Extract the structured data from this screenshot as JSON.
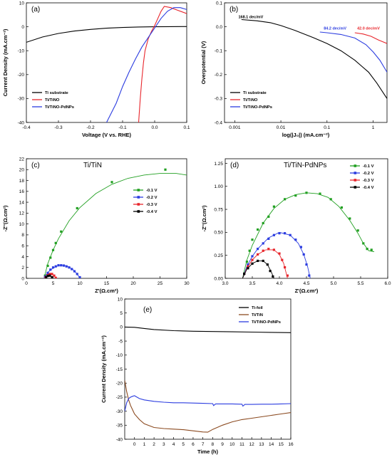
{
  "chart_data": [
    {
      "id": "a",
      "type": "line",
      "panel_label": "(a)",
      "xlabel": "Voltage (V vs. RHE)",
      "ylabel": "Current Density (mA.cm⁻²)",
      "xlim": [
        -0.4,
        0.1
      ],
      "ylim": [
        -40,
        10
      ],
      "xticks": [
        -0.4,
        -0.3,
        -0.2,
        -0.1,
        0.0,
        0.1
      ],
      "xtick_labels": [
        "-0.4",
        "-0.3",
        "-0.2",
        "-0.1",
        "0.0",
        "0.1"
      ],
      "yticks": [
        -40,
        -30,
        -20,
        -10,
        0,
        10
      ],
      "ytick_labels": [
        "-40",
        "-30",
        "-20",
        "-10",
        "0",
        "10"
      ],
      "legend_position": "bottom-left",
      "series": [
        {
          "name": "Ti substrate",
          "color": "#000000",
          "style": "line",
          "x": [
            -0.4,
            -0.35,
            -0.3,
            -0.25,
            -0.2,
            -0.15,
            -0.1,
            -0.05,
            0.0,
            0.05,
            0.1
          ],
          "y": [
            -6.5,
            -4.3,
            -2.8,
            -1.8,
            -1.1,
            -0.6,
            -0.3,
            -0.1,
            0.0,
            0.05,
            0.1
          ]
        },
        {
          "name": "Ti/TiNO",
          "color": "#e8262c",
          "style": "line",
          "x": [
            -0.05,
            -0.045,
            -0.04,
            -0.035,
            -0.03,
            -0.02,
            -0.01,
            0.0,
            0.01,
            0.02,
            0.03,
            0.05,
            0.07,
            0.1
          ],
          "y": [
            -40,
            -30,
            -22,
            -15,
            -10,
            -5,
            -2,
            0.5,
            3.5,
            6.5,
            8.5,
            8.0,
            7.0,
            5.5
          ]
        },
        {
          "name": "Ti/TiNO-PdNPs",
          "color": "#2c3de0",
          "style": "line",
          "x": [
            -0.15,
            -0.12,
            -0.1,
            -0.08,
            -0.06,
            -0.04,
            -0.02,
            0.0,
            0.02,
            0.04,
            0.06,
            0.08,
            0.1
          ],
          "y": [
            -40,
            -32,
            -25,
            -19,
            -13.5,
            -8.5,
            -4.5,
            -0.5,
            3.5,
            6.5,
            8.0,
            8.0,
            7.2
          ]
        }
      ]
    },
    {
      "id": "b",
      "type": "line",
      "panel_label": "(b)",
      "xlabel": "log(|J₀|) (mA.cm⁻²)",
      "ylabel": "Overpotential (V)",
      "xscale": "log",
      "xlim": [
        0.0006,
        2
      ],
      "ylim": [
        -0.4,
        0.1
      ],
      "xticks": [
        0.001,
        0.01,
        0.1,
        1
      ],
      "xtick_labels": [
        "0.001",
        "0.01",
        "0.1",
        "1"
      ],
      "yticks": [
        -0.4,
        -0.3,
        -0.2,
        -0.1,
        0.0,
        0.1
      ],
      "ytick_labels": [
        "-0.4",
        "-0.3",
        "-0.2",
        "-0.1",
        "0.0",
        "0.1"
      ],
      "legend_position": "bottom-left",
      "annotations": [
        {
          "text": "168.1 dec/mV",
          "color": "#000000",
          "x": 0.0012,
          "y": 0.036
        },
        {
          "text": "84.2 dec/mV",
          "color": "#2c3de0",
          "x": 0.085,
          "y": -0.012
        },
        {
          "text": "42.0 dec/mV",
          "color": "#e8262c",
          "x": 0.45,
          "y": -0.012
        }
      ],
      "series": [
        {
          "name": "Ti substrate",
          "color": "#000000",
          "style": "line",
          "x": [
            0.0014,
            0.003,
            0.006,
            0.01,
            0.02,
            0.05,
            0.1,
            0.2,
            0.4,
            0.8,
            1.2,
            2.0
          ],
          "y": [
            0.03,
            0.025,
            0.017,
            0.005,
            -0.015,
            -0.045,
            -0.07,
            -0.1,
            -0.14,
            -0.19,
            -0.235,
            -0.3
          ]
        },
        {
          "name": "Ti/TiNO",
          "color": "#e8262c",
          "style": "line",
          "x": [
            0.4,
            0.6,
            0.9,
            1.3,
            2.0
          ],
          "y": [
            -0.025,
            -0.03,
            -0.04,
            -0.055,
            -0.07
          ]
        },
        {
          "name": "Ti/TiNO-PdNPs",
          "color": "#2c3de0",
          "style": "line",
          "x": [
            0.07,
            0.1,
            0.2,
            0.4,
            0.7,
            1.0,
            1.4,
            2.0
          ],
          "y": [
            -0.022,
            -0.025,
            -0.032,
            -0.047,
            -0.075,
            -0.105,
            -0.14,
            -0.19
          ]
        }
      ]
    },
    {
      "id": "c",
      "type": "scatter",
      "panel_label": "(c)",
      "title": "Ti/TiN",
      "xlabel": "Z'(Ω.cm²)",
      "ylabel": "-Z''(Ω.cm²)",
      "xlim": [
        0,
        30
      ],
      "ylim": [
        0,
        22
      ],
      "xticks": [
        0,
        5,
        10,
        15,
        20,
        25,
        30
      ],
      "xtick_labels": [
        "0",
        "5",
        "10",
        "15",
        "20",
        "25",
        "30"
      ],
      "yticks": [
        0,
        2,
        4,
        6,
        8,
        10,
        12,
        14,
        16,
        18,
        20,
        22
      ],
      "ytick_labels": [
        "0",
        "2",
        "4",
        "6",
        "8",
        "10",
        "12",
        "14",
        "16",
        "18",
        "20",
        "22"
      ],
      "legend_position": "right",
      "series": [
        {
          "name": "-0.1 V",
          "color": "#22a022",
          "x": [
            3.5,
            4.0,
            4.5,
            5.0,
            5.5,
            6.5,
            9.5,
            16.0,
            26.0
          ],
          "y": [
            0.5,
            2.3,
            3.8,
            5.2,
            6.5,
            8.6,
            12.9,
            17.7,
            20.0
          ],
          "fit_x": [
            3.3,
            4,
            5,
            6,
            8,
            10,
            13,
            16,
            19,
            22,
            25,
            28,
            30
          ],
          "fit_y": [
            0,
            2.7,
            5.2,
            7.3,
            10.6,
            13.0,
            15.6,
            17.3,
            18.4,
            19.0,
            19.3,
            19.3,
            19.0
          ]
        },
        {
          "name": "-0.2 V",
          "color": "#2c3de0",
          "x": [
            3.5,
            4.0,
            4.5,
            5.0,
            5.5,
            6.0,
            6.5,
            7.0,
            7.5,
            8.0,
            8.5,
            9.0,
            9.5,
            10.0
          ],
          "y": [
            0.3,
            1.0,
            1.6,
            2.0,
            2.2,
            2.4,
            2.4,
            2.35,
            2.2,
            2.0,
            1.7,
            1.3,
            0.8,
            0.2
          ],
          "fit_x": [
            3.3,
            4,
            5,
            6,
            7,
            8,
            9,
            10
          ],
          "fit_y": [
            0,
            1.1,
            1.9,
            2.35,
            2.4,
            2.1,
            1.4,
            0.1
          ]
        },
        {
          "name": "-0.3 V",
          "color": "#e8262c",
          "x": [
            3.6,
            4.0,
            4.4,
            4.8,
            5.2,
            5.5
          ],
          "y": [
            0.2,
            0.6,
            0.8,
            0.8,
            0.5,
            0.1
          ],
          "fit_x": [
            3.5,
            4,
            4.5,
            5,
            5.5
          ],
          "fit_y": [
            0,
            0.65,
            0.85,
            0.7,
            0.1
          ]
        },
        {
          "name": "-0.4 V",
          "color": "#000000",
          "x": [
            3.7,
            4.0,
            4.4,
            4.8
          ],
          "y": [
            0.2,
            0.45,
            0.5,
            0.2
          ],
          "fit_x": [
            3.6,
            4.0,
            4.4,
            4.9
          ],
          "fit_y": [
            0,
            0.45,
            0.5,
            0.05
          ]
        }
      ]
    },
    {
      "id": "d",
      "type": "scatter",
      "panel_label": "(d)",
      "title": "Ti/TiN-PdNPs",
      "xlabel": "Z'(Ω.cm²)",
      "ylabel": "-Z''(Ω.cm²)",
      "xlim": [
        3.0,
        6.0
      ],
      "ylim": [
        0.0,
        1.3
      ],
      "xticks": [
        3.0,
        3.5,
        4.0,
        4.5,
        5.0,
        5.5,
        6.0
      ],
      "xtick_labels": [
        "3.0",
        "3.5",
        "4.0",
        "4.5",
        "5.0",
        "5.5",
        "6.0"
      ],
      "yticks": [
        0.0,
        0.25,
        0.5,
        0.75,
        1.0,
        1.25
      ],
      "ytick_labels": [
        "0.00",
        "0.25",
        "0.50",
        "0.75",
        "1.00",
        "1.25"
      ],
      "legend_position": "top-right",
      "series": [
        {
          "name": "-0.1 V",
          "color": "#22a022",
          "x": [
            3.35,
            3.4,
            3.45,
            3.5,
            3.6,
            3.7,
            3.8,
            3.9,
            4.1,
            4.3,
            4.5,
            4.75,
            4.95,
            5.15,
            5.3,
            5.45,
            5.55,
            5.62,
            5.7
          ],
          "y": [
            0.05,
            0.18,
            0.3,
            0.42,
            0.53,
            0.6,
            0.67,
            0.78,
            0.86,
            0.9,
            0.93,
            0.92,
            0.86,
            0.77,
            0.65,
            0.52,
            0.38,
            0.32,
            0.31
          ],
          "fit_x": [
            3.32,
            3.4,
            3.5,
            3.7,
            3.9,
            4.1,
            4.3,
            4.5,
            4.7,
            4.9,
            5.1,
            5.3,
            5.45,
            5.55,
            5.65,
            5.75
          ],
          "fit_y": [
            0,
            0.2,
            0.36,
            0.6,
            0.76,
            0.86,
            0.91,
            0.93,
            0.92,
            0.88,
            0.78,
            0.63,
            0.49,
            0.38,
            0.3,
            0.29
          ]
        },
        {
          "name": "-0.2 V",
          "color": "#2c3de0",
          "x": [
            3.35,
            3.42,
            3.5,
            3.6,
            3.7,
            3.8,
            3.9,
            4.0,
            4.1,
            4.2,
            4.3,
            4.4,
            4.45,
            4.5,
            4.55
          ],
          "y": [
            0.05,
            0.15,
            0.24,
            0.32,
            0.38,
            0.43,
            0.47,
            0.49,
            0.49,
            0.47,
            0.42,
            0.34,
            0.26,
            0.15,
            0.03
          ],
          "fit_x": [
            3.32,
            3.4,
            3.5,
            3.6,
            3.8,
            4.0,
            4.2,
            4.35,
            4.45,
            4.52,
            4.57
          ],
          "fit_y": [
            0,
            0.13,
            0.24,
            0.32,
            0.44,
            0.5,
            0.47,
            0.38,
            0.26,
            0.13,
            0
          ]
        },
        {
          "name": "-0.3 V",
          "color": "#e8262c",
          "x": [
            3.35,
            3.42,
            3.5,
            3.6,
            3.7,
            3.8,
            3.9,
            4.0,
            4.05,
            4.1,
            4.15
          ],
          "y": [
            0.05,
            0.13,
            0.2,
            0.26,
            0.3,
            0.32,
            0.31,
            0.27,
            0.2,
            0.12,
            0.03
          ],
          "fit_x": [
            3.32,
            3.4,
            3.5,
            3.6,
            3.75,
            3.9,
            4.0,
            4.08,
            4.15
          ],
          "fit_y": [
            0,
            0.11,
            0.2,
            0.26,
            0.31,
            0.31,
            0.26,
            0.16,
            0
          ]
        },
        {
          "name": "-0.4 V",
          "color": "#000000",
          "x": [
            3.35,
            3.42,
            3.5,
            3.6,
            3.7,
            3.78,
            3.83,
            3.88
          ],
          "y": [
            0.05,
            0.11,
            0.16,
            0.19,
            0.19,
            0.15,
            0.08,
            0.02
          ],
          "fit_x": [
            3.32,
            3.4,
            3.5,
            3.6,
            3.7,
            3.78,
            3.85,
            3.9
          ],
          "fit_y": [
            0,
            0.1,
            0.16,
            0.19,
            0.19,
            0.15,
            0.07,
            0
          ]
        }
      ]
    },
    {
      "id": "e",
      "type": "line",
      "panel_label": "(e)",
      "xlabel": "Time (h)",
      "ylabel": "Current Density (mA.cm⁻²)",
      "xlim": [
        -1,
        16
      ],
      "ylim": [
        -40,
        10
      ],
      "xticks": [
        0,
        1,
        2,
        3,
        4,
        5,
        6,
        7,
        8,
        9,
        10,
        11,
        12,
        13,
        14,
        15,
        16
      ],
      "xtick_labels": [
        "0",
        "1",
        "2",
        "3",
        "4",
        "5",
        "6",
        "7",
        "8",
        "9",
        "10",
        "11",
        "12",
        "13",
        "14",
        "15",
        "16"
      ],
      "yticks": [
        10,
        5,
        0,
        -5,
        -10,
        -15,
        -20,
        -25,
        -30,
        -35,
        -40
      ],
      "ytick_labels": [
        "10",
        "5",
        "0",
        "-5",
        "-10",
        "-15",
        "-20",
        "-25",
        "-30",
        "-35",
        "-40"
      ],
      "legend_position": "top-right",
      "series": [
        {
          "name": "Ti-foil",
          "color": "#000000",
          "style": "line",
          "x": [
            -1,
            0,
            1,
            2,
            4,
            6,
            8,
            10,
            12,
            14,
            16
          ],
          "y": [
            0,
            -0.1,
            -0.5,
            -0.9,
            -1.3,
            -1.5,
            -1.6,
            -1.7,
            -1.8,
            -1.9,
            -2.0
          ]
        },
        {
          "name": "Ti/TiN",
          "color": "#8b4a20",
          "style": "line",
          "x": [
            -1,
            -0.8,
            -0.6,
            -0.4,
            -0.2,
            0,
            0.5,
            1,
            2,
            3,
            4,
            5,
            6,
            7,
            7.5,
            8,
            9,
            10,
            11,
            12,
            13,
            14,
            15,
            16
          ],
          "y": [
            -19,
            -23,
            -26,
            -28,
            -29.5,
            -31,
            -33,
            -34.5,
            -35.8,
            -36.2,
            -36.4,
            -36.6,
            -37,
            -37.4,
            -37.5,
            -36.5,
            -35,
            -33.8,
            -33,
            -32.5,
            -32,
            -31.5,
            -31,
            -30.5
          ]
        },
        {
          "name": "Ti/TiNO-PdNPs",
          "color": "#2c3de0",
          "style": "line",
          "x": [
            -1,
            -0.8,
            -0.6,
            -0.4,
            -0.2,
            0,
            0.5,
            1,
            2,
            3,
            4,
            5,
            6,
            7,
            8,
            8.1,
            8.3,
            9,
            10,
            11,
            11.1,
            11.3,
            12,
            13,
            14,
            15,
            16
          ],
          "y": [
            -30,
            -27,
            -25.5,
            -25,
            -24.7,
            -24.5,
            -25.5,
            -26,
            -26.5,
            -26.8,
            -27,
            -27,
            -27.1,
            -27.2,
            -27.3,
            -28,
            -27.4,
            -27.4,
            -27.4,
            -27.5,
            -28.2,
            -27.6,
            -27.6,
            -27.5,
            -27.5,
            -27.4,
            -27.3
          ]
        }
      ]
    }
  ]
}
